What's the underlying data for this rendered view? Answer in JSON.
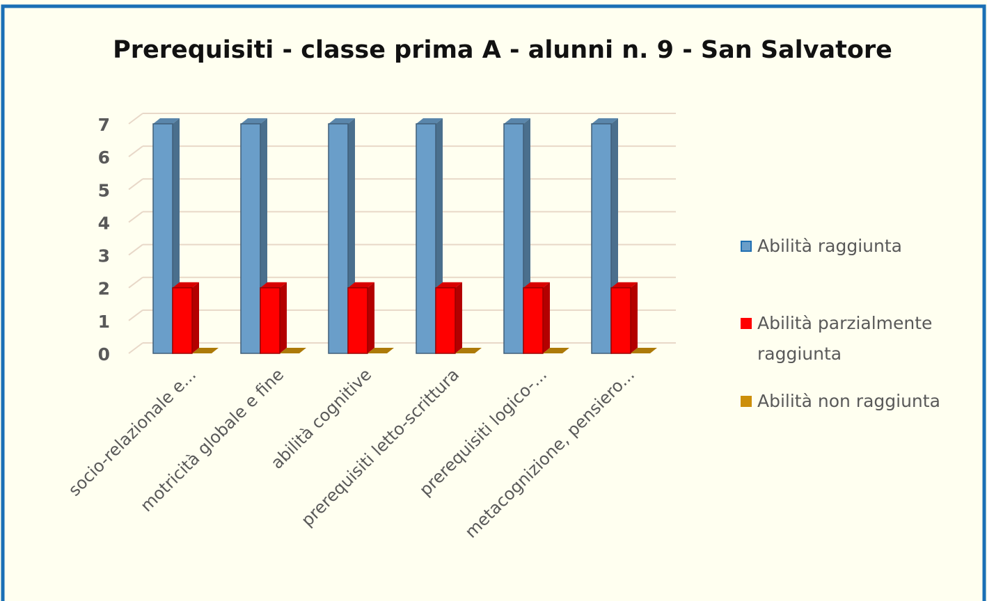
{
  "chart_data": {
    "type": "bar",
    "title": "Prerequisiti - classe prima A - alunni n. 9 - San Salvatore",
    "categories": [
      "socio-relazionale e...",
      "motricità globale e fine",
      "abilità cognitive",
      "prerequisiti letto-scrittura",
      "prerequisiti logico-...",
      "metacognizione, pensiero..."
    ],
    "series": [
      {
        "name": "Abilità raggiunta",
        "color": "#6a9ec9",
        "values": [
          7,
          7,
          7,
          7,
          7,
          7
        ]
      },
      {
        "name": "Abilità parzialmente raggiunta",
        "color": "#ff0000",
        "values": [
          2,
          2,
          2,
          2,
          2,
          2
        ]
      },
      {
        "name": "Abilità non raggiunta",
        "color": "#cc8f0a",
        "values": [
          0,
          0,
          0,
          0,
          0,
          0
        ]
      }
    ],
    "ylim": [
      0,
      7
    ],
    "yticks": [
      0,
      1,
      2,
      3,
      4,
      5,
      6,
      7
    ],
    "grid": true,
    "legend": "right"
  }
}
